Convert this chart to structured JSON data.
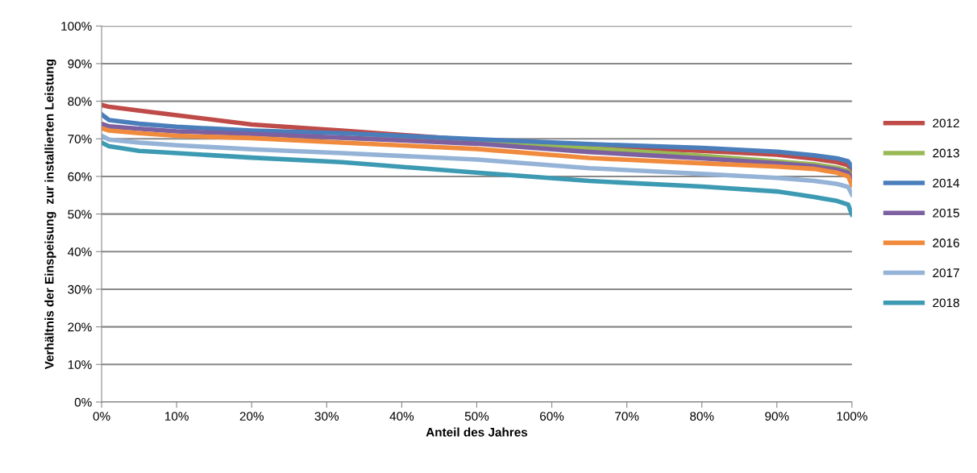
{
  "chart_data": {
    "type": "line",
    "xlabel": "Anteil des Jahres",
    "ylabel": "Verhältnis der Einspeisung  zur installierten Leistung",
    "x": [
      0,
      1,
      5,
      10,
      20,
      32,
      50,
      65,
      80,
      90,
      95,
      98,
      99.5,
      100
    ],
    "series": [
      {
        "name": "2012",
        "color": "#be4b48",
        "values": [
          79.0,
          78.5,
          77.5,
          76.3,
          73.8,
          72.2,
          69.6,
          68.0,
          66.8,
          65.8,
          64.7,
          63.8,
          63.0,
          61.0
        ]
      },
      {
        "name": "2013",
        "color": "#98b954",
        "values": [
          null,
          null,
          null,
          null,
          null,
          70.3,
          69.0,
          67.5,
          65.5,
          64.0,
          63.2,
          62.3,
          61.5,
          60.0
        ]
      },
      {
        "name": "2014",
        "color": "#4a7ebb",
        "values": [
          76.5,
          75.0,
          74.0,
          73.2,
          72.2,
          71.5,
          69.9,
          68.6,
          67.6,
          66.6,
          65.6,
          64.8,
          64.0,
          62.5
        ]
      },
      {
        "name": "2015",
        "color": "#7d60a0",
        "values": [
          74.0,
          73.3,
          72.7,
          72.0,
          71.3,
          70.3,
          68.7,
          66.5,
          64.8,
          63.5,
          62.7,
          61.8,
          61.0,
          59.2
        ]
      },
      {
        "name": "2016",
        "color": "#f08a3c",
        "values": [
          72.8,
          72.2,
          71.5,
          70.8,
          70.2,
          69.0,
          67.3,
          64.9,
          63.5,
          62.6,
          62.0,
          61.0,
          60.0,
          57.7
        ]
      },
      {
        "name": "2017",
        "color": "#95b3d7",
        "values": [
          70.8,
          69.8,
          69.0,
          68.3,
          67.2,
          66.2,
          64.5,
          62.2,
          60.7,
          59.6,
          58.8,
          58.0,
          57.2,
          55.2
        ]
      },
      {
        "name": "2018",
        "color": "#3d9ab3",
        "values": [
          69.0,
          68.0,
          66.8,
          66.2,
          65.0,
          63.8,
          61.0,
          58.8,
          57.3,
          56.0,
          54.5,
          53.5,
          52.5,
          49.9
        ]
      }
    ],
    "xlim": [
      0,
      100
    ],
    "xticks": [
      {
        "value": 0,
        "label": "0%"
      },
      {
        "value": 10,
        "label": "10%"
      },
      {
        "value": 20,
        "label": "20%"
      },
      {
        "value": 30,
        "label": "30%"
      },
      {
        "value": 40,
        "label": "40%"
      },
      {
        "value": 50,
        "label": "50%"
      },
      {
        "value": 60,
        "label": "60%"
      },
      {
        "value": 70,
        "label": "70%"
      },
      {
        "value": 80,
        "label": "80%"
      },
      {
        "value": 90,
        "label": "90%"
      },
      {
        "value": 100,
        "label": "100%"
      }
    ],
    "ylim": [
      0,
      100
    ],
    "yticks": [
      {
        "value": 0,
        "label": "0%"
      },
      {
        "value": 10,
        "label": "10%"
      },
      {
        "value": 20,
        "label": "20%"
      },
      {
        "value": 30,
        "label": "30%"
      },
      {
        "value": 40,
        "label": "40%"
      },
      {
        "value": 50,
        "label": "50%"
      },
      {
        "value": 60,
        "label": "60%"
      },
      {
        "value": 70,
        "label": "70%"
      },
      {
        "value": 80,
        "label": "80%"
      },
      {
        "value": 90,
        "label": "90%"
      },
      {
        "value": 100,
        "label": "100%"
      }
    ],
    "grid": "y",
    "legend": "right",
    "marker": "none",
    "line_style": "solid"
  }
}
